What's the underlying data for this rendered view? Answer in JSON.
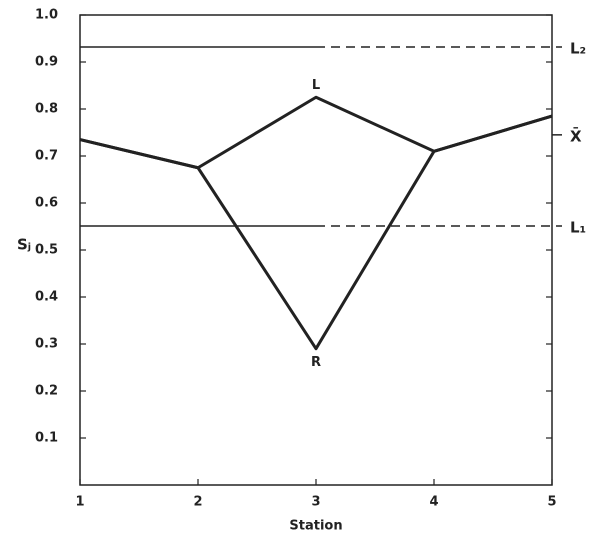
{
  "chart_data": {
    "type": "line",
    "xlabel": "Station",
    "ylabel": "Sⱼ",
    "x": [
      1,
      2,
      3,
      4,
      5
    ],
    "xlim": [
      1,
      5
    ],
    "xticks": [
      1,
      2,
      3,
      4,
      5
    ],
    "ylim": [
      0,
      1
    ],
    "yticks": [
      0.1,
      0.2,
      0.3,
      0.4,
      0.5,
      0.6,
      0.7,
      0.8,
      0.9,
      {
        "value": 1,
        "label": "1.0"
      }
    ],
    "series": [
      {
        "name": "L",
        "color": "#222222",
        "values": [
          0.735,
          0.675,
          0.825,
          0.71,
          0.785
        ]
      },
      {
        "name": "R",
        "color": "#222222",
        "values": [
          0.735,
          0.675,
          0.29,
          0.71,
          0.785
        ]
      }
    ],
    "reference_lines": [
      {
        "label": "L₂",
        "value": 0.932,
        "line": true
      },
      {
        "label": "X̄",
        "value": 0.745,
        "line": false
      },
      {
        "label": "L₁",
        "value": 0.551,
        "line": true
      }
    ]
  }
}
